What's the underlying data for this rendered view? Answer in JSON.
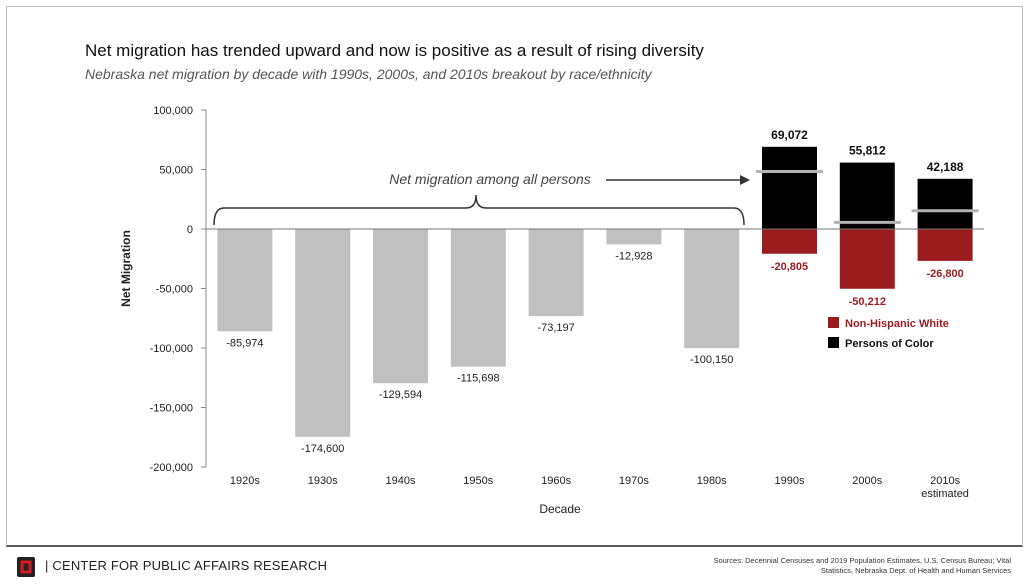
{
  "header": {
    "title": "Net migration has trended upward and now is positive as a result of rising diversity",
    "subtitle": "Nebraska net migration by decade with 1990s, 2000s, and 2010s breakout by race/ethnicity"
  },
  "chart_data": {
    "type": "bar",
    "xlabel": "Decade",
    "ylabel": "Net Migration",
    "ylim": [
      -200000,
      100000
    ],
    "ytick_values": [
      100000,
      50000,
      0,
      -50000,
      -100000,
      -150000,
      -200000
    ],
    "ytick_labels": [
      "100,000",
      "50,000",
      "0",
      "-50,000",
      "-100,000",
      "-150,000",
      "-200,000"
    ],
    "categories": [
      "1920s",
      "1930s",
      "1940s",
      "1950s",
      "1960s",
      "1970s",
      "1980s",
      "1990s",
      "2000s",
      "2010s estimated"
    ],
    "total_series": {
      "color": "#c0c0c0",
      "values": [
        -85974,
        -174600,
        -129594,
        -115698,
        -73197,
        -12928,
        -100150
      ],
      "labels": [
        "-85,974",
        "-174,600",
        "-129,594",
        "-115,698",
        "-73,197",
        "-12,928",
        "-100,150"
      ]
    },
    "breakout_series": [
      {
        "name": "Persons of Color",
        "color": "#000000",
        "values": [
          69072,
          55812,
          42188
        ],
        "labels": [
          "69,072",
          "55,812",
          "42,188"
        ]
      },
      {
        "name": "Non-Hispanic White",
        "color": "#9b1c1f",
        "values": [
          -20805,
          -50212,
          -26800
        ],
        "labels": [
          "-20,805",
          "-50,212",
          "-26,800"
        ]
      }
    ],
    "net_total_markers": [
      48267,
      5600,
      15388
    ],
    "annotation": "Net migration among all persons",
    "legend_position": "right"
  },
  "footer": {
    "org": "| CENTER FOR PUBLIC AFFAIRS RESEARCH",
    "sources": "Sources: Decennial Censuses and 2019 Population Estimates, U.S. Census Bureau; Vital Statistics, Nebraska Dept. of Health and Human Services"
  }
}
